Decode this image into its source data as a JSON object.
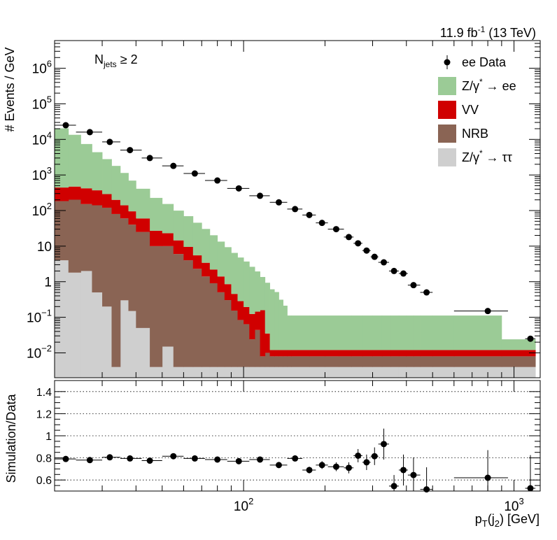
{
  "chart_data": [
    {
      "type": "stacked-histogram",
      "header": "11.9 fb⁻¹ (13 TeV)",
      "annotation": "N_jets ≥ 2",
      "ylabel": "# Events / GeV",
      "yscale": "log",
      "ylim": [
        0.002,
        6000000
      ],
      "legend_position": "top-right",
      "legend": [
        {
          "label": "ee Data",
          "kind": "marker",
          "color": "#000000"
        },
        {
          "label": "Z/γ* → ee",
          "kind": "fill",
          "color": "#9bcb96"
        },
        {
          "label": "VV",
          "kind": "fill",
          "color": "#d00000"
        },
        {
          "label": "NRB",
          "kind": "fill",
          "color": "#8a6454"
        },
        {
          "label": "Z/γ* → ττ",
          "kind": "fill",
          "color": "#cfcfcf"
        }
      ],
      "bin_edges": [
        20,
        22.5,
        25,
        27.5,
        30,
        32.5,
        35,
        37.5,
        40,
        45,
        50,
        55,
        60,
        65,
        70,
        75,
        80,
        85,
        90,
        95,
        100,
        105,
        110,
        115,
        120,
        125,
        130,
        135,
        140,
        145,
        150,
        175,
        200,
        225,
        250,
        275,
        300,
        325,
        350,
        375,
        400,
        425,
        450,
        500,
        600,
        900,
        1200
      ],
      "series": [
        {
          "name": "Z/γ* → ττ",
          "values": [
            4,
            1.8,
            2,
            0.5,
            0.2,
            0.004,
            0.3,
            0.15,
            0.05,
            0.004,
            0.015,
            0.004,
            0.004,
            0.004,
            0.004,
            0.004,
            0.004,
            0.004,
            0.004,
            0.004,
            0.004,
            0.004,
            0.004,
            0.004,
            0.004,
            0.004,
            0.004,
            0.004,
            0.004,
            0.004,
            0.004,
            0.004,
            0.004,
            0.004,
            0.004,
            0.004,
            0.004,
            0.004,
            0.004,
            0.004,
            0.004,
            0.004,
            0.004,
            0.004,
            0.004,
            0.004
          ]
        },
        {
          "name": "NRB",
          "values": [
            180,
            200,
            150,
            140,
            120,
            80,
            60,
            40,
            25,
            10,
            10,
            6,
            4,
            2.3,
            1.4,
            0.9,
            0.5,
            0.3,
            0.15,
            0.08,
            0.06,
            0.02,
            0.04,
            0.004,
            0.006,
            0.004,
            0.004,
            0.004,
            0.004,
            0.004,
            0.004,
            0.004,
            0.004,
            0.004,
            0.004,
            0.004,
            0.004,
            0.004,
            0.004,
            0.004,
            0.004,
            0.004,
            0.004,
            0.004,
            0.004,
            0.004
          ]
        },
        {
          "name": "VV",
          "values": [
            260,
            270,
            270,
            230,
            170,
            120,
            80,
            55,
            35,
            17,
            13,
            8.5,
            5.5,
            3.2,
            2,
            1.3,
            0.9,
            0.55,
            0.3,
            0.2,
            0.13,
            0.1,
            0.1,
            0.15,
            0.025,
            0.004,
            0.004,
            0.004,
            0.004,
            0.004,
            0.004,
            0.004,
            0.004,
            0.004,
            0.004,
            0.004,
            0.004,
            0.004,
            0.004,
            0.004,
            0.004,
            0.004,
            0.004,
            0.004,
            0.004,
            0.004
          ]
        },
        {
          "name": "Z/γ* → ee",
          "values": [
            20000,
            13000,
            7000,
            4000,
            2500,
            1600,
            1000,
            600,
            350,
            200,
            130,
            85,
            60,
            40,
            27,
            18,
            12,
            8.5,
            6,
            4.5,
            3.5,
            2.5,
            1.8,
            1.2,
            0.9,
            0.6,
            0.5,
            0.3,
            0.2,
            0.1,
            0.1,
            0.1,
            0.1,
            0.1,
            0.1,
            0.1,
            0.1,
            0.1,
            0.1,
            0.1,
            0.1,
            0.1,
            0.1,
            0.1,
            0.1,
            0.012
          ]
        }
      ],
      "data_points": [
        {
          "x": 22,
          "xlo": 20,
          "xhi": 24,
          "y": 25000
        },
        {
          "x": 27,
          "xlo": 24,
          "xhi": 30,
          "y": 16000
        },
        {
          "x": 32,
          "xlo": 30,
          "xhi": 35,
          "y": 8500
        },
        {
          "x": 38,
          "xlo": 35,
          "xhi": 42,
          "y": 5000
        },
        {
          "x": 45,
          "xlo": 42,
          "xhi": 50,
          "y": 3000
        },
        {
          "x": 55,
          "xlo": 50,
          "xhi": 60,
          "y": 1800
        },
        {
          "x": 66,
          "xlo": 60,
          "xhi": 72,
          "y": 1100
        },
        {
          "x": 80,
          "xlo": 72,
          "xhi": 87,
          "y": 700
        },
        {
          "x": 96,
          "xlo": 87,
          "xhi": 105,
          "y": 420
        },
        {
          "x": 115,
          "xlo": 105,
          "xhi": 125,
          "y": 260
        },
        {
          "x": 135,
          "xlo": 125,
          "xhi": 145,
          "y": 170
        },
        {
          "x": 155,
          "xlo": 145,
          "xhi": 165,
          "y": 110
        },
        {
          "x": 175,
          "xlo": 165,
          "xhi": 185,
          "y": 75
        },
        {
          "x": 195,
          "xlo": 185,
          "xhi": 205,
          "y": 45
        },
        {
          "x": 220,
          "xlo": 205,
          "xhi": 235,
          "y": 30
        },
        {
          "x": 245,
          "xlo": 235,
          "xhi": 255,
          "y": 18
        },
        {
          "x": 265,
          "xlo": 255,
          "xhi": 275,
          "y": 12
        },
        {
          "x": 285,
          "xlo": 275,
          "xhi": 295,
          "y": 7.5
        },
        {
          "x": 305,
          "xlo": 295,
          "xhi": 315,
          "y": 5
        },
        {
          "x": 330,
          "xlo": 315,
          "xhi": 345,
          "y": 3.5
        },
        {
          "x": 360,
          "xlo": 345,
          "xhi": 375,
          "y": 2
        },
        {
          "x": 390,
          "xlo": 375,
          "xhi": 405,
          "y": 1.7
        },
        {
          "x": 425,
          "xlo": 405,
          "xhi": 450,
          "y": 0.8
        },
        {
          "x": 475,
          "xlo": 450,
          "xhi": 500,
          "y": 0.5
        },
        {
          "x": 800,
          "xlo": 600,
          "xhi": 950,
          "y": 0.15
        },
        {
          "x": 1150,
          "xlo": 1100,
          "xhi": 1200,
          "y": 0.025
        }
      ],
      "y_ticks": [
        {
          "value": 0.01,
          "mant": "10",
          "exp": "−2"
        },
        {
          "value": 0.1,
          "mant": "10",
          "exp": "−1"
        },
        {
          "value": 1,
          "mant": "1",
          "exp": ""
        },
        {
          "value": 10,
          "mant": "10",
          "exp": ""
        },
        {
          "value": 100,
          "mant": "10",
          "exp": "2"
        },
        {
          "value": 1000,
          "mant": "10",
          "exp": "3"
        },
        {
          "value": 10000,
          "mant": "10",
          "exp": "4"
        },
        {
          "value": 100000,
          "mant": "10",
          "exp": "5"
        },
        {
          "value": 1000000,
          "mant": "10",
          "exp": "6"
        }
      ]
    },
    {
      "type": "scatter-errorbar",
      "ylabel": "Simulation/Data",
      "xlabel": "p_T(j_2) [GeV]",
      "xscale": "log",
      "xlim": [
        20,
        1250
      ],
      "ylim": [
        0.5,
        1.5
      ],
      "grid": "horizontal dotted",
      "y_ticks": [
        "0.6",
        "0.8",
        "1",
        "1.2",
        "1.4"
      ],
      "x_ticks": [
        {
          "value": 100,
          "mant": "10",
          "exp": "2"
        },
        {
          "value": 1000,
          "mant": "10",
          "exp": "3"
        }
      ],
      "points": [
        {
          "x": 22,
          "xlo": 20,
          "xhi": 24,
          "y": 0.79,
          "err": 0.01
        },
        {
          "x": 27,
          "xlo": 24,
          "xhi": 30,
          "y": 0.78,
          "err": 0.01
        },
        {
          "x": 32,
          "xlo": 30,
          "xhi": 35,
          "y": 0.805,
          "err": 0.01
        },
        {
          "x": 38,
          "xlo": 35,
          "xhi": 42,
          "y": 0.795,
          "err": 0.01
        },
        {
          "x": 45,
          "xlo": 42,
          "xhi": 50,
          "y": 0.775,
          "err": 0.01
        },
        {
          "x": 55,
          "xlo": 50,
          "xhi": 60,
          "y": 0.815,
          "err": 0.012
        },
        {
          "x": 66,
          "xlo": 60,
          "xhi": 72,
          "y": 0.795,
          "err": 0.012
        },
        {
          "x": 80,
          "xlo": 72,
          "xhi": 87,
          "y": 0.785,
          "err": 0.014
        },
        {
          "x": 96,
          "xlo": 87,
          "xhi": 105,
          "y": 0.77,
          "err": 0.015
        },
        {
          "x": 115,
          "xlo": 105,
          "xhi": 125,
          "y": 0.785,
          "err": 0.018
        },
        {
          "x": 135,
          "xlo": 125,
          "xhi": 145,
          "y": 0.735,
          "err": 0.02
        },
        {
          "x": 155,
          "xlo": 145,
          "xhi": 165,
          "y": 0.795,
          "err": 0.025
        },
        {
          "x": 175,
          "xlo": 165,
          "xhi": 185,
          "y": 0.69,
          "err": 0.03
        },
        {
          "x": 195,
          "xlo": 185,
          "xhi": 205,
          "y": 0.735,
          "err": 0.035
        },
        {
          "x": 220,
          "xlo": 205,
          "xhi": 235,
          "y": 0.72,
          "err": 0.04
        },
        {
          "x": 245,
          "xlo": 235,
          "xhi": 255,
          "y": 0.71,
          "err": 0.05
        },
        {
          "x": 265,
          "xlo": 255,
          "xhi": 275,
          "y": 0.82,
          "err": 0.06
        },
        {
          "x": 285,
          "xlo": 275,
          "xhi": 295,
          "y": 0.76,
          "err": 0.07
        },
        {
          "x": 305,
          "xlo": 295,
          "xhi": 315,
          "y": 0.815,
          "err": 0.08
        },
        {
          "x": 330,
          "xlo": 315,
          "xhi": 345,
          "y": 0.925,
          "err": 0.14
        },
        {
          "x": 360,
          "xlo": 345,
          "xhi": 375,
          "y": 0.545,
          "err": 0.1
        },
        {
          "x": 390,
          "xlo": 375,
          "xhi": 405,
          "y": 0.69,
          "err": 0.14
        },
        {
          "x": 425,
          "xlo": 405,
          "xhi": 450,
          "y": 0.645,
          "err": 0.16
        },
        {
          "x": 475,
          "xlo": 450,
          "xhi": 500,
          "y": 0.515,
          "err": 0.2
        },
        {
          "x": 800,
          "xlo": 600,
          "xhi": 950,
          "y": 0.62,
          "err": 0.25
        },
        {
          "x": 1150,
          "xlo": 1100,
          "xhi": 1200,
          "y": 0.525,
          "err": 0.3
        }
      ]
    }
  ]
}
